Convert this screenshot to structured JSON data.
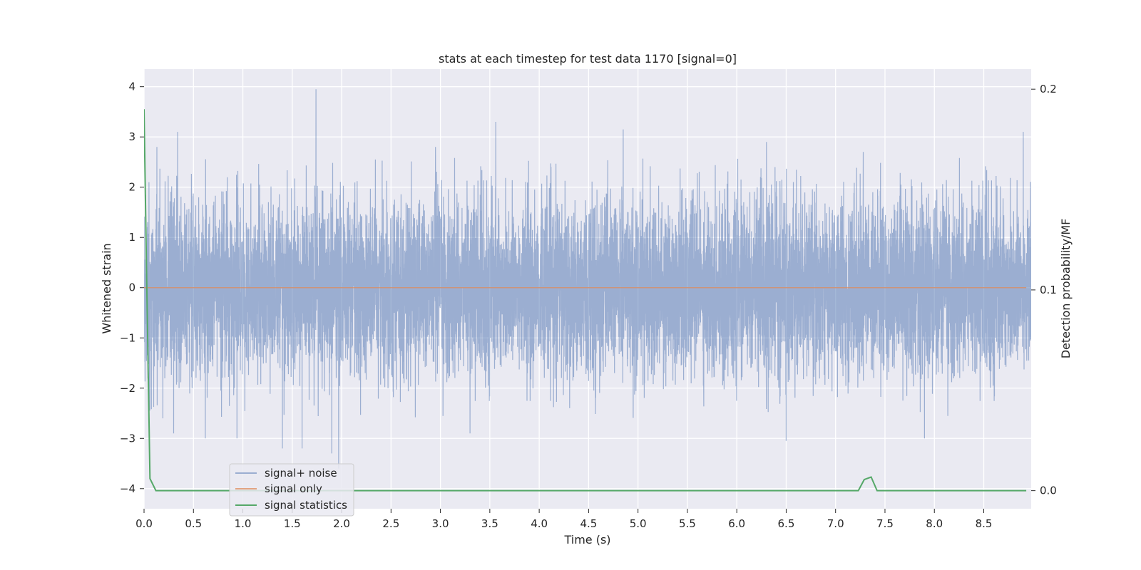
{
  "chart_data": {
    "type": "line",
    "title": "stats at each timestep for test data 1170 [signal=0]",
    "xlabel": "Time (s)",
    "ylabel": "Whitened strain",
    "y2label": "Detection probability/MF",
    "xlim": [
      0,
      8.98
    ],
    "ylim": [
      -4.4,
      4.35
    ],
    "y2lim": [
      -0.009,
      0.21
    ],
    "x_ticks": [
      0.0,
      0.5,
      1.0,
      1.5,
      2.0,
      2.5,
      3.0,
      3.5,
      4.0,
      4.5,
      5.0,
      5.5,
      6.0,
      6.5,
      7.0,
      7.5,
      8.0,
      8.5
    ],
    "x_tick_labels": [
      "0.0",
      "0.5",
      "1.0",
      "1.5",
      "2.0",
      "2.5",
      "3.0",
      "3.5",
      "4.0",
      "4.5",
      "5.0",
      "5.5",
      "6.0",
      "6.5",
      "7.0",
      "7.5",
      "8.0",
      "8.5"
    ],
    "y_ticks": [
      -4,
      -3,
      -2,
      -1,
      0,
      1,
      2,
      3,
      4
    ],
    "y_tick_labels": [
      "−4",
      "−3",
      "−2",
      "−1",
      "0",
      "1",
      "2",
      "3",
      "4"
    ],
    "y2_ticks": [
      0.0,
      0.1,
      0.2
    ],
    "y2_tick_labels": [
      "0.0",
      "0.1",
      "0.2"
    ],
    "grid": true,
    "legend_position": "lower-left",
    "series": [
      {
        "name": "signal+ noise",
        "axis": "left",
        "color": "#4c72b0",
        "noise_std": 0.85,
        "sample_rate_hz": 2048,
        "peaks": [
          {
            "x": 0.04,
            "y": -1.5
          },
          {
            "x": 0.05,
            "y": 2.1
          },
          {
            "x": 0.13,
            "y": 2.8
          },
          {
            "x": 0.19,
            "y": -2.6
          },
          {
            "x": 0.3,
            "y": -2.9
          },
          {
            "x": 0.34,
            "y": 3.1
          },
          {
            "x": 0.62,
            "y": -3.0
          },
          {
            "x": 0.94,
            "y": -3.0
          },
          {
            "x": 1.4,
            "y": -3.2
          },
          {
            "x": 1.6,
            "y": -3.2
          },
          {
            "x": 1.74,
            "y": 3.95
          },
          {
            "x": 1.9,
            "y": -3.3
          },
          {
            "x": 1.97,
            "y": -3.6
          },
          {
            "x": 2.95,
            "y": 2.8
          },
          {
            "x": 3.3,
            "y": -2.9
          },
          {
            "x": 3.56,
            "y": 3.3
          },
          {
            "x": 4.85,
            "y": 3.15
          },
          {
            "x": 6.3,
            "y": 2.9
          },
          {
            "x": 6.5,
            "y": -3.05
          },
          {
            "x": 7.28,
            "y": 2.7
          },
          {
            "x": 7.9,
            "y": -3.0
          },
          {
            "x": 8.9,
            "y": 3.1
          }
        ]
      },
      {
        "name": "signal only",
        "axis": "left",
        "color": "#dd8452",
        "y": 0
      },
      {
        "name": "signal statistics",
        "axis": "right",
        "color": "#55a868",
        "x": [
          0.0,
          0.02,
          0.06,
          0.12,
          7.23,
          7.29,
          7.36,
          7.42,
          8.93
        ],
        "y": [
          0.19,
          0.125,
          0.006,
          0.0,
          0.0,
          0.0055,
          0.0068,
          0.0,
          0.0
        ]
      }
    ]
  }
}
